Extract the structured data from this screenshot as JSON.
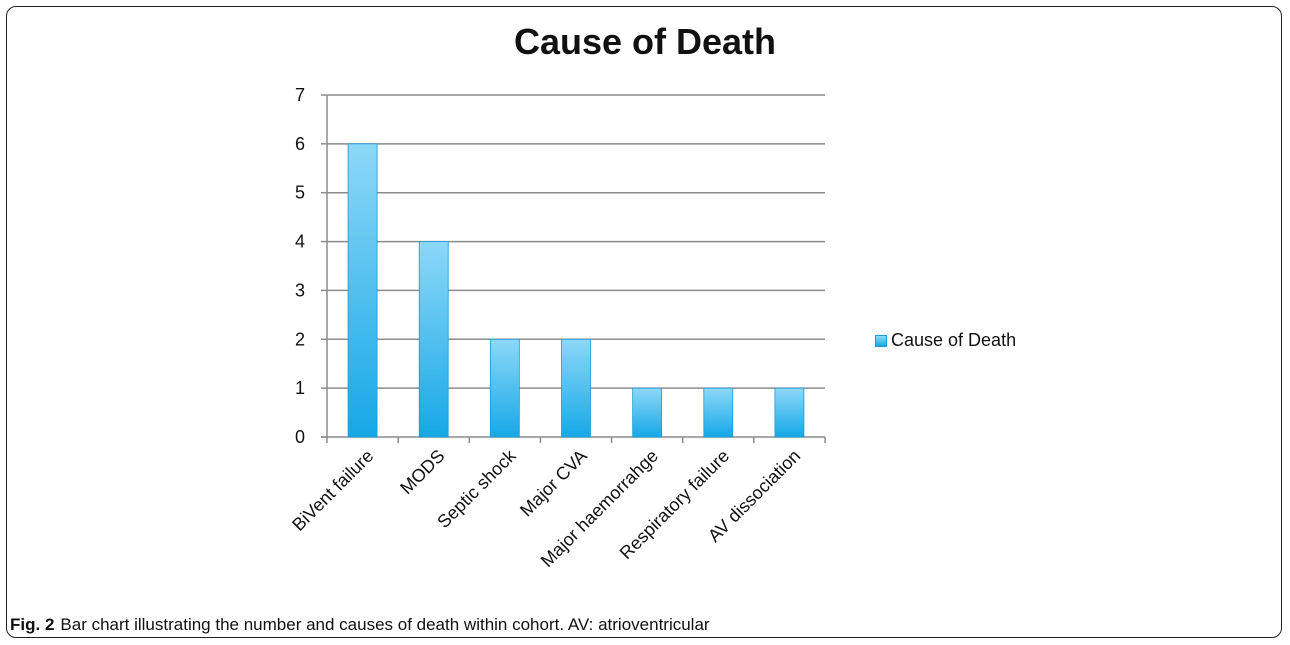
{
  "figure": {
    "caption_label": "Fig. 2",
    "caption_text": "Bar chart illustrating the number and causes of death within cohort. AV: atrioventricular"
  },
  "chart_data": {
    "type": "bar",
    "title": "Cause of Death",
    "categories": [
      "BiVent failure",
      "MODS",
      "Septic shock",
      "Major CVA",
      "Major haemorrahge",
      "Respiratory failure",
      "AV dissociation"
    ],
    "series": [
      {
        "name": "Cause of Death",
        "values": [
          6,
          4,
          2,
          2,
          1,
          1,
          1
        ]
      }
    ],
    "xlabel": "",
    "ylabel": "",
    "ylim": [
      0,
      7
    ],
    "yticks": [
      0,
      1,
      2,
      3,
      4,
      5,
      6,
      7
    ],
    "grid": true,
    "legend_position": "right",
    "bar_colors": {
      "top": "#8dd8f8",
      "bottom": "#16a8e6",
      "edge": "#1a9bd6"
    }
  }
}
